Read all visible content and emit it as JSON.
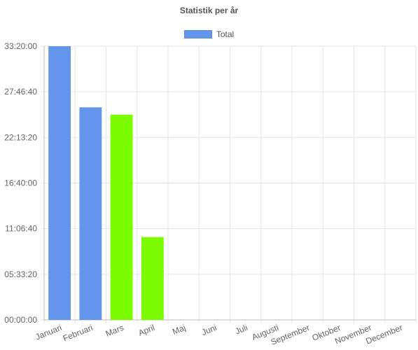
{
  "chart_data": {
    "type": "bar",
    "title": "Statistik per år",
    "legend": {
      "label": "Total",
      "color": "#6495ED",
      "position": "top"
    },
    "categories": [
      "Januari",
      "Februari",
      "Mars",
      "April",
      "Maj",
      "Juni",
      "Juli",
      "Augusti",
      "September",
      "Oktober",
      "November",
      "December"
    ],
    "series": [
      {
        "name": "Total",
        "values": [
          120000,
          93200,
          90000,
          36300,
          0,
          0,
          0,
          0,
          0,
          0,
          0,
          0
        ],
        "colors": [
          "#6495ED",
          "#6495ED",
          "#7CFC00",
          "#7CFC00",
          "#6495ED",
          "#6495ED",
          "#6495ED",
          "#6495ED",
          "#6495ED",
          "#6495ED",
          "#6495ED",
          "#6495ED"
        ]
      }
    ],
    "y_tick_labels": [
      "00:00:00",
      "05:33:20",
      "11:06:40",
      "16:40:00",
      "22:13:20",
      "27:46:40",
      "33:20:00"
    ],
    "ylim": [
      0,
      120000
    ],
    "grid": true
  }
}
